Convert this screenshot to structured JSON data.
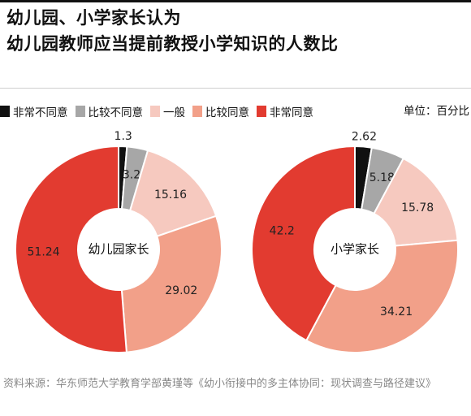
{
  "title_lines": [
    "幼儿园、小学家长认为",
    "幼儿园教师应当提前教授小学知识的人数比"
  ],
  "legend": [
    {
      "label": "非常不同意",
      "color": "#111111"
    },
    {
      "label": "比较不同意",
      "color": "#a7a7a7"
    },
    {
      "label": "一般",
      "color": "#f6c9bf"
    },
    {
      "label": "比较同意",
      "color": "#f2a089"
    },
    {
      "label": "非常同意",
      "color": "#e23b30"
    }
  ],
  "unit": "单位：百分比",
  "source": "资料来源：华东师范大学教育学部黄瑾等《幼小衔接中的多主体协同：现状调查与路径建议》",
  "chart_data": [
    {
      "type": "pie",
      "donut": true,
      "center_label": "幼儿园家长",
      "categories": [
        "非常不同意",
        "比较不同意",
        "一般",
        "比较同意",
        "非常同意"
      ],
      "values": [
        1.3,
        3.28,
        15.16,
        29.02,
        51.24
      ],
      "value_labels": [
        "1.3",
        "3.28",
        "15.16",
        "29.02",
        "51.24"
      ]
    },
    {
      "type": "pie",
      "donut": true,
      "center_label": "小学家长",
      "categories": [
        "非常不同意",
        "比较不同意",
        "一般",
        "比较同意",
        "非常同意"
      ],
      "values": [
        2.62,
        5.18,
        15.78,
        34.21,
        42.2
      ],
      "value_labels": [
        "2.62",
        "5.18",
        "15.78",
        "34.21",
        "42.2"
      ]
    }
  ]
}
